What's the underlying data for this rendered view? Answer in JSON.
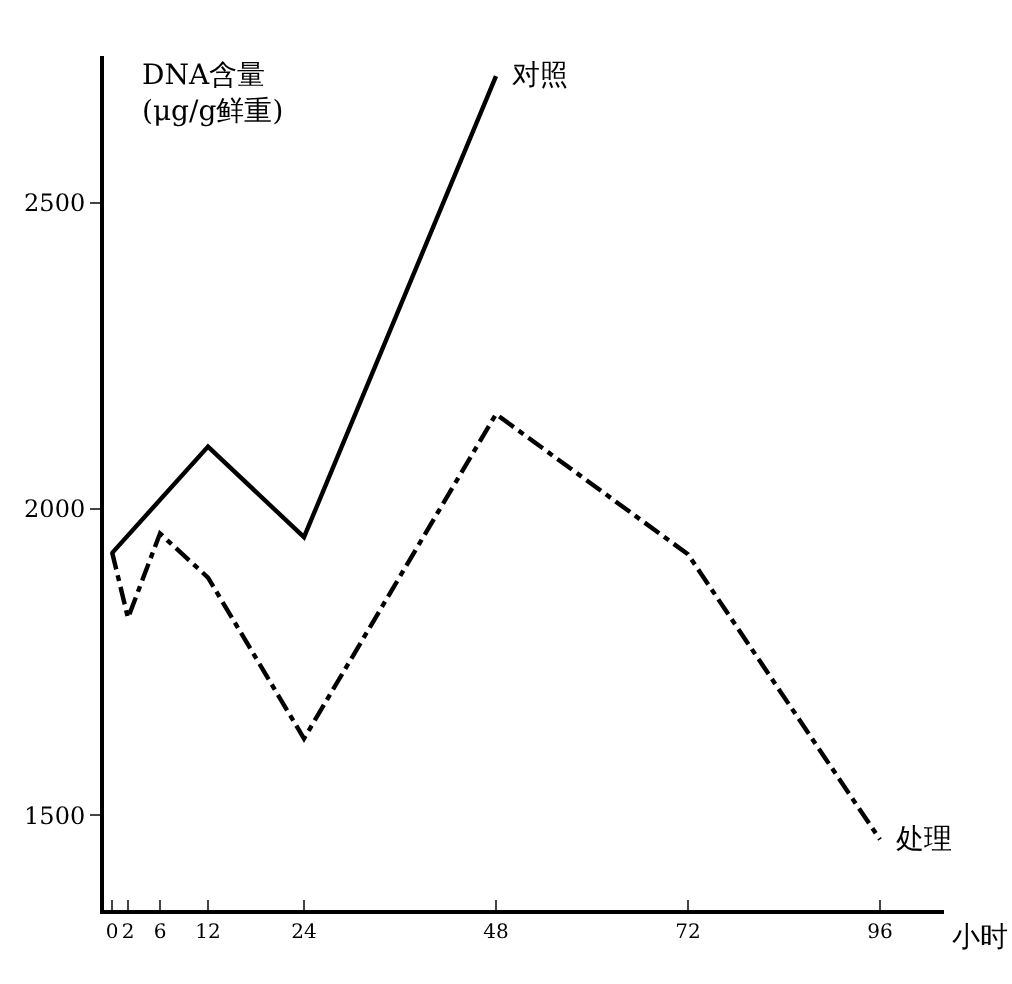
{
  "chart_data": {
    "type": "line",
    "ylabel": "DNA含量\n(μg/g鲜重)",
    "xlabel": "小时",
    "series": [
      {
        "name": "对照",
        "color": "#000000",
        "line_style": "solid",
        "x": [
          0,
          12,
          24,
          48
        ],
        "values": [
          1928,
          2102,
          1954,
          2707
        ]
      },
      {
        "name": "处理",
        "color": "#000000",
        "line_style": "dashdot",
        "x": [
          0,
          2,
          6,
          12,
          24,
          48,
          72,
          96
        ],
        "values": [
          1930,
          1822,
          1960,
          1888,
          1625,
          2155,
          1926,
          1460
        ]
      }
    ],
    "xlim": [
      -1,
      104
    ],
    "xticks": [
      0,
      2,
      6,
      12,
      24,
      48,
      72,
      96
    ],
    "ylim": [
      1345,
      2740
    ],
    "yticks": [
      1500,
      2000,
      2500
    ],
    "grid": false,
    "legend": false
  }
}
